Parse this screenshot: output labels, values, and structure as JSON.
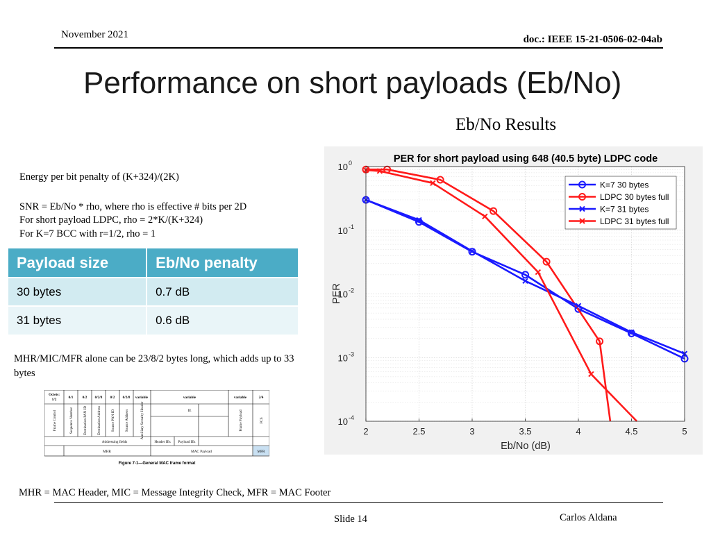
{
  "header": {
    "date": "November 2021",
    "doc": "doc.: IEEE 15-21-0506-02-04ab"
  },
  "slide": {
    "title": "Performance on short payloads (Eb/No)",
    "subtitle": "Eb/No Results"
  },
  "notes": {
    "line1": "Energy per bit penalty of  (K+324)/(2K)",
    "line2": "SNR = Eb/No * rho, where rho is effective # bits per  2D",
    "line3": "For short payload LDPC, rho = 2*K/(K+324)",
    "line4": "For K=7 BCC with r=1/2, rho = 1",
    "mhr": "MHR/MIC/MFR alone can be 23/8/2 bytes long, which adds up to 33 bytes",
    "footnote": "MHR = MAC Header, MIC = Message Integrity Check, MFR = MAC Footer"
  },
  "penalty_table": {
    "headers": [
      "Payload size",
      "Eb/No penalty"
    ],
    "rows": [
      [
        "30 bytes",
        "0.7 dB"
      ],
      [
        "31 bytes",
        "0.6 dB"
      ]
    ]
  },
  "mac_figure": {
    "octets_label": "Octets:",
    "octets_sub": "1/2",
    "octets": [
      "0/1",
      "0/2",
      "0/2/8",
      "0/2",
      "0/2/8",
      "variable",
      "variable",
      "variable",
      "2/4"
    ],
    "fields": [
      "Frame Control",
      "Sequence Number",
      "Destination PAN ID",
      "Destination Address",
      "Source PAN ID",
      "Source Address",
      "Auxiliary Security Header",
      "Frame Payload",
      "FCS"
    ],
    "ie_label": "IE",
    "addressing": "Addressing fields",
    "header_ies": "Header IEs",
    "payload_ies": "Payload IEs",
    "mhr": "MHR",
    "mac_payload": "MAC Payload",
    "mfr": "MFR",
    "caption": "Figure 7-1—General MAC frame format"
  },
  "chart_data": {
    "type": "line",
    "title": "PER for short payload using 648 (40.5 byte) LDPC code",
    "xlabel": "Eb/No (dB)",
    "ylabel": "PER",
    "xlim": [
      2,
      5
    ],
    "ylim": [
      0.0001,
      1
    ],
    "yscale": "log",
    "grid": true,
    "legend_position": "top-right",
    "xticks": [
      "2",
      "2.5",
      "3",
      "3.5",
      "4",
      "4.5",
      "5"
    ],
    "yticks": [
      {
        "base": "10",
        "exp": "0"
      },
      {
        "base": "10",
        "exp": "-1"
      },
      {
        "base": "10",
        "exp": "-2"
      },
      {
        "base": "10",
        "exp": "-3"
      },
      {
        "base": "10",
        "exp": "-4"
      }
    ],
    "series": [
      {
        "name": "K=7 30 bytes",
        "color": "#1a1aff",
        "marker": "circle",
        "x": [
          2,
          2.5,
          3,
          3.5,
          4,
          4.5,
          5
        ],
        "y": [
          0.3,
          0.135,
          0.046,
          0.02,
          0.0058,
          0.0024,
          0.00096
        ]
      },
      {
        "name": "LDPC 30 bytes full",
        "color": "#ff1a1a",
        "marker": "circle",
        "x": [
          2,
          2.2,
          2.7,
          3.2,
          3.7,
          4.2,
          4.3
        ],
        "y": [
          0.9,
          0.9,
          0.62,
          0.2,
          0.032,
          0.0018,
          0.0001
        ]
      },
      {
        "name": "K=7 31 bytes",
        "color": "#1a1aff",
        "marker": "x",
        "x": [
          2,
          2.5,
          3,
          3.5,
          4,
          4.5,
          5
        ],
        "y": [
          0.3,
          0.145,
          0.047,
          0.016,
          0.0065,
          0.0025,
          0.00115
        ]
      },
      {
        "name": "LDPC 31 bytes full",
        "color": "#ff1a1a",
        "marker": "x",
        "x": [
          2,
          2.13,
          2.63,
          3.12,
          3.62,
          4.12,
          4.55
        ],
        "y": [
          0.88,
          0.85,
          0.55,
          0.165,
          0.022,
          0.00055,
          0.0001
        ]
      }
    ]
  },
  "footer": {
    "slide": "Slide 14",
    "author": "Carlos Aldana"
  }
}
